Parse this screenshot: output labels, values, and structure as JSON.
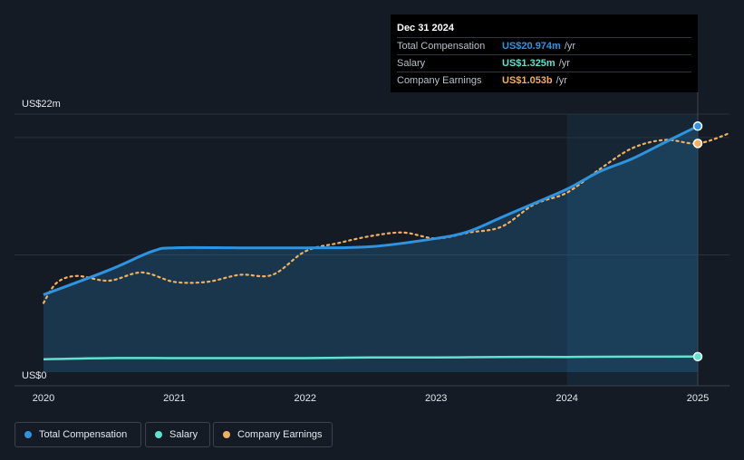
{
  "tooltip": {
    "date": "Dec 31 2024",
    "rows": [
      {
        "label": "Total Compensation",
        "value": "US$20.974m",
        "unit": "/yr"
      },
      {
        "label": "Salary",
        "value": "US$1.325m",
        "unit": "/yr"
      },
      {
        "label": "Company Earnings",
        "value": "US$1.053b",
        "unit": "/yr"
      }
    ]
  },
  "legend": [
    {
      "label": "Total Compensation"
    },
    {
      "label": "Salary"
    },
    {
      "label": "Company Earnings"
    }
  ],
  "colors": {
    "total_compensation": "#2f94e0",
    "salary": "#5fe3cf",
    "company_earnings": "#f0b060",
    "background": "#151b24",
    "highlight": "#172634"
  },
  "chart_data": {
    "type": "line",
    "title": "",
    "y_axis_labels": [
      "US$22m",
      "US$0"
    ],
    "ylim": [
      0,
      22
    ],
    "xlim": [
      2020,
      2025.25
    ],
    "x_ticks": [
      "2020",
      "2021",
      "2022",
      "2023",
      "2024",
      "2025"
    ],
    "highlight_range": [
      2024,
      2025
    ],
    "series": [
      {
        "name": "Total Compensation",
        "unit": "US$m",
        "points": [
          [
            2020,
            6.6
          ],
          [
            2020.5,
            8.7
          ],
          [
            2020.83,
            10.3
          ],
          [
            2021,
            10.6
          ],
          [
            2021.5,
            10.6
          ],
          [
            2022,
            10.6
          ],
          [
            2022.5,
            10.7
          ],
          [
            2023,
            11.4
          ],
          [
            2023.25,
            12.0
          ],
          [
            2023.5,
            13.2
          ],
          [
            2023.75,
            14.4
          ],
          [
            2024,
            15.6
          ],
          [
            2024.25,
            17.1
          ],
          [
            2024.5,
            18.2
          ],
          [
            2024.75,
            19.6
          ],
          [
            2025,
            20.974
          ]
        ]
      },
      {
        "name": "Salary",
        "unit": "US$m",
        "points": [
          [
            2020,
            1.1
          ],
          [
            2020.5,
            1.2
          ],
          [
            2021,
            1.2
          ],
          [
            2021.5,
            1.2
          ],
          [
            2022,
            1.2
          ],
          [
            2022.5,
            1.25
          ],
          [
            2023,
            1.25
          ],
          [
            2023.5,
            1.3
          ],
          [
            2024,
            1.3
          ],
          [
            2024.5,
            1.32
          ],
          [
            2025,
            1.325
          ]
        ]
      },
      {
        "name": "Company Earnings",
        "unit": "US$m (scaled)",
        "points": [
          [
            2020,
            5.9
          ],
          [
            2020.1,
            7.6
          ],
          [
            2020.25,
            8.2
          ],
          [
            2020.5,
            7.8
          ],
          [
            2020.75,
            8.5
          ],
          [
            2021,
            7.7
          ],
          [
            2021.25,
            7.7
          ],
          [
            2021.5,
            8.3
          ],
          [
            2021.75,
            8.3
          ],
          [
            2022,
            10.3
          ],
          [
            2022.25,
            11.0
          ],
          [
            2022.5,
            11.6
          ],
          [
            2022.75,
            11.9
          ],
          [
            2023,
            11.4
          ],
          [
            2023.25,
            11.9
          ],
          [
            2023.5,
            12.4
          ],
          [
            2023.75,
            14.3
          ],
          [
            2024,
            15.3
          ],
          [
            2024.25,
            17.3
          ],
          [
            2024.5,
            19.1
          ],
          [
            2024.75,
            19.8
          ],
          [
            2025,
            19.5
          ],
          [
            2025.25,
            20.4
          ]
        ]
      }
    ]
  }
}
